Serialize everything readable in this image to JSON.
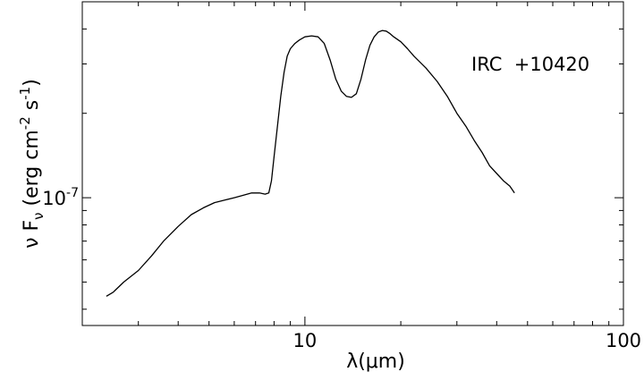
{
  "chart_data": {
    "type": "line",
    "annotation": "IRC  +10420",
    "xlabel": "λ(μm)",
    "ylabel": "ν F_ν (erg cm^-2 s^-1)",
    "x_scale": "log",
    "y_scale": "log",
    "xlim": [
      2,
      100
    ],
    "ylim": [
      3.5e-08,
      5e-07
    ],
    "x_ticks": [
      {
        "value": 10,
        "label": "10"
      },
      {
        "value": 100,
        "label": "100"
      }
    ],
    "y_ticks": [
      {
        "value": 1e-07,
        "label": "10^-7"
      }
    ],
    "grid": false,
    "series": [
      {
        "x": [
          2.38,
          2.5,
          2.7,
          3.0,
          3.3,
          3.6,
          4.0,
          4.4,
          4.8,
          5.2,
          5.6,
          6.0,
          6.4,
          6.8,
          7.2,
          7.5,
          7.7,
          7.85,
          8.0,
          8.2,
          8.4,
          8.6,
          8.8,
          9.0,
          9.3,
          9.6,
          10.0,
          10.5,
          11.0,
          11.5,
          12.0,
          12.5,
          13.0,
          13.5,
          14.0,
          14.5,
          15.0,
          15.5,
          16.0,
          16.5,
          17.0,
          17.5,
          18.0,
          18.5,
          19.0,
          20.0,
          21.0,
          22.0,
          24.0,
          26.0,
          28.0,
          30.0,
          32.0,
          34.0,
          36.0,
          38.0,
          40.0,
          42.0,
          44.0,
          45.5
        ],
        "y": [
          4.45e-08,
          4.6e-08,
          5e-08,
          5.5e-08,
          6.2e-08,
          7e-08,
          7.9e-08,
          8.7e-08,
          9.2e-08,
          9.6e-08,
          9.8e-08,
          1e-07,
          1.02e-07,
          1.04e-07,
          1.04e-07,
          1.03e-07,
          1.04e-07,
          1.15e-07,
          1.4e-07,
          1.8e-07,
          2.3e-07,
          2.8e-07,
          3.2e-07,
          3.4e-07,
          3.55e-07,
          3.65e-07,
          3.75e-07,
          3.78e-07,
          3.75e-07,
          3.55e-07,
          3.1e-07,
          2.65e-07,
          2.4e-07,
          2.3e-07,
          2.28e-07,
          2.35e-07,
          2.65e-07,
          3.1e-07,
          3.5e-07,
          3.75e-07,
          3.9e-07,
          3.95e-07,
          3.93e-07,
          3.85e-07,
          3.75e-07,
          3.6e-07,
          3.4e-07,
          3.2e-07,
          2.9e-07,
          2.6e-07,
          2.3e-07,
          2e-07,
          1.8e-07,
          1.6e-07,
          1.45e-07,
          1.3e-07,
          1.22e-07,
          1.15e-07,
          1.1e-07,
          1.04e-07
        ]
      }
    ]
  }
}
